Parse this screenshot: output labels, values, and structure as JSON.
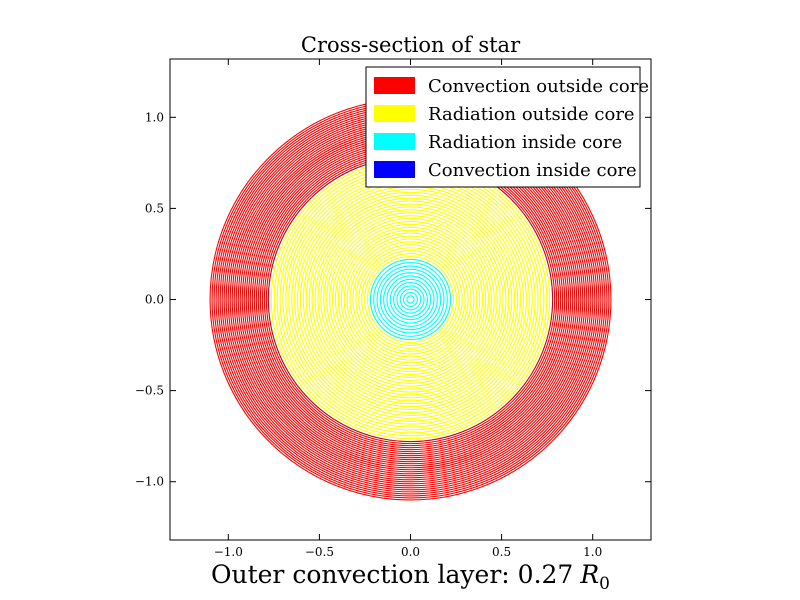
{
  "chart_data": {
    "type": "contour-rings",
    "title": "Cross-section of star",
    "caption_text": "Outer convection layer: 0.27",
    "caption_symbol": "R",
    "caption_subscript": "0",
    "xlim": [
      -1.32,
      1.32
    ],
    "ylim": [
      -1.32,
      1.32
    ],
    "xticks": [
      -1.0,
      -0.5,
      0.0,
      0.5,
      1.0
    ],
    "yticks": [
      -1.0,
      -0.5,
      0.0,
      0.5,
      1.0
    ],
    "xtick_labels": [
      "−1.0",
      "−0.5",
      "0.0",
      "0.5",
      "1.0"
    ],
    "ytick_labels": [
      "−1.0",
      "−0.5",
      "0.0",
      "0.5",
      "1.0"
    ],
    "grid": false,
    "legend_position": "top-right",
    "regions": [
      {
        "name": "Convection outside core",
        "color": "#ff0000",
        "r_inner": 0.78,
        "r_outer": 1.1,
        "rings": 30
      },
      {
        "name": "Radiation outside core",
        "color": "#ffff00",
        "r_inner": 0.22,
        "r_outer": 0.78,
        "rings": 36
      },
      {
        "name": "Radiation inside core",
        "color": "#00ffff",
        "r_inner": 0.02,
        "r_outer": 0.22,
        "rings": 12
      },
      {
        "name": "Convection inside core",
        "color": "#0000ff",
        "r_inner": 0.0,
        "r_outer": 0.0,
        "rings": 0
      }
    ]
  }
}
